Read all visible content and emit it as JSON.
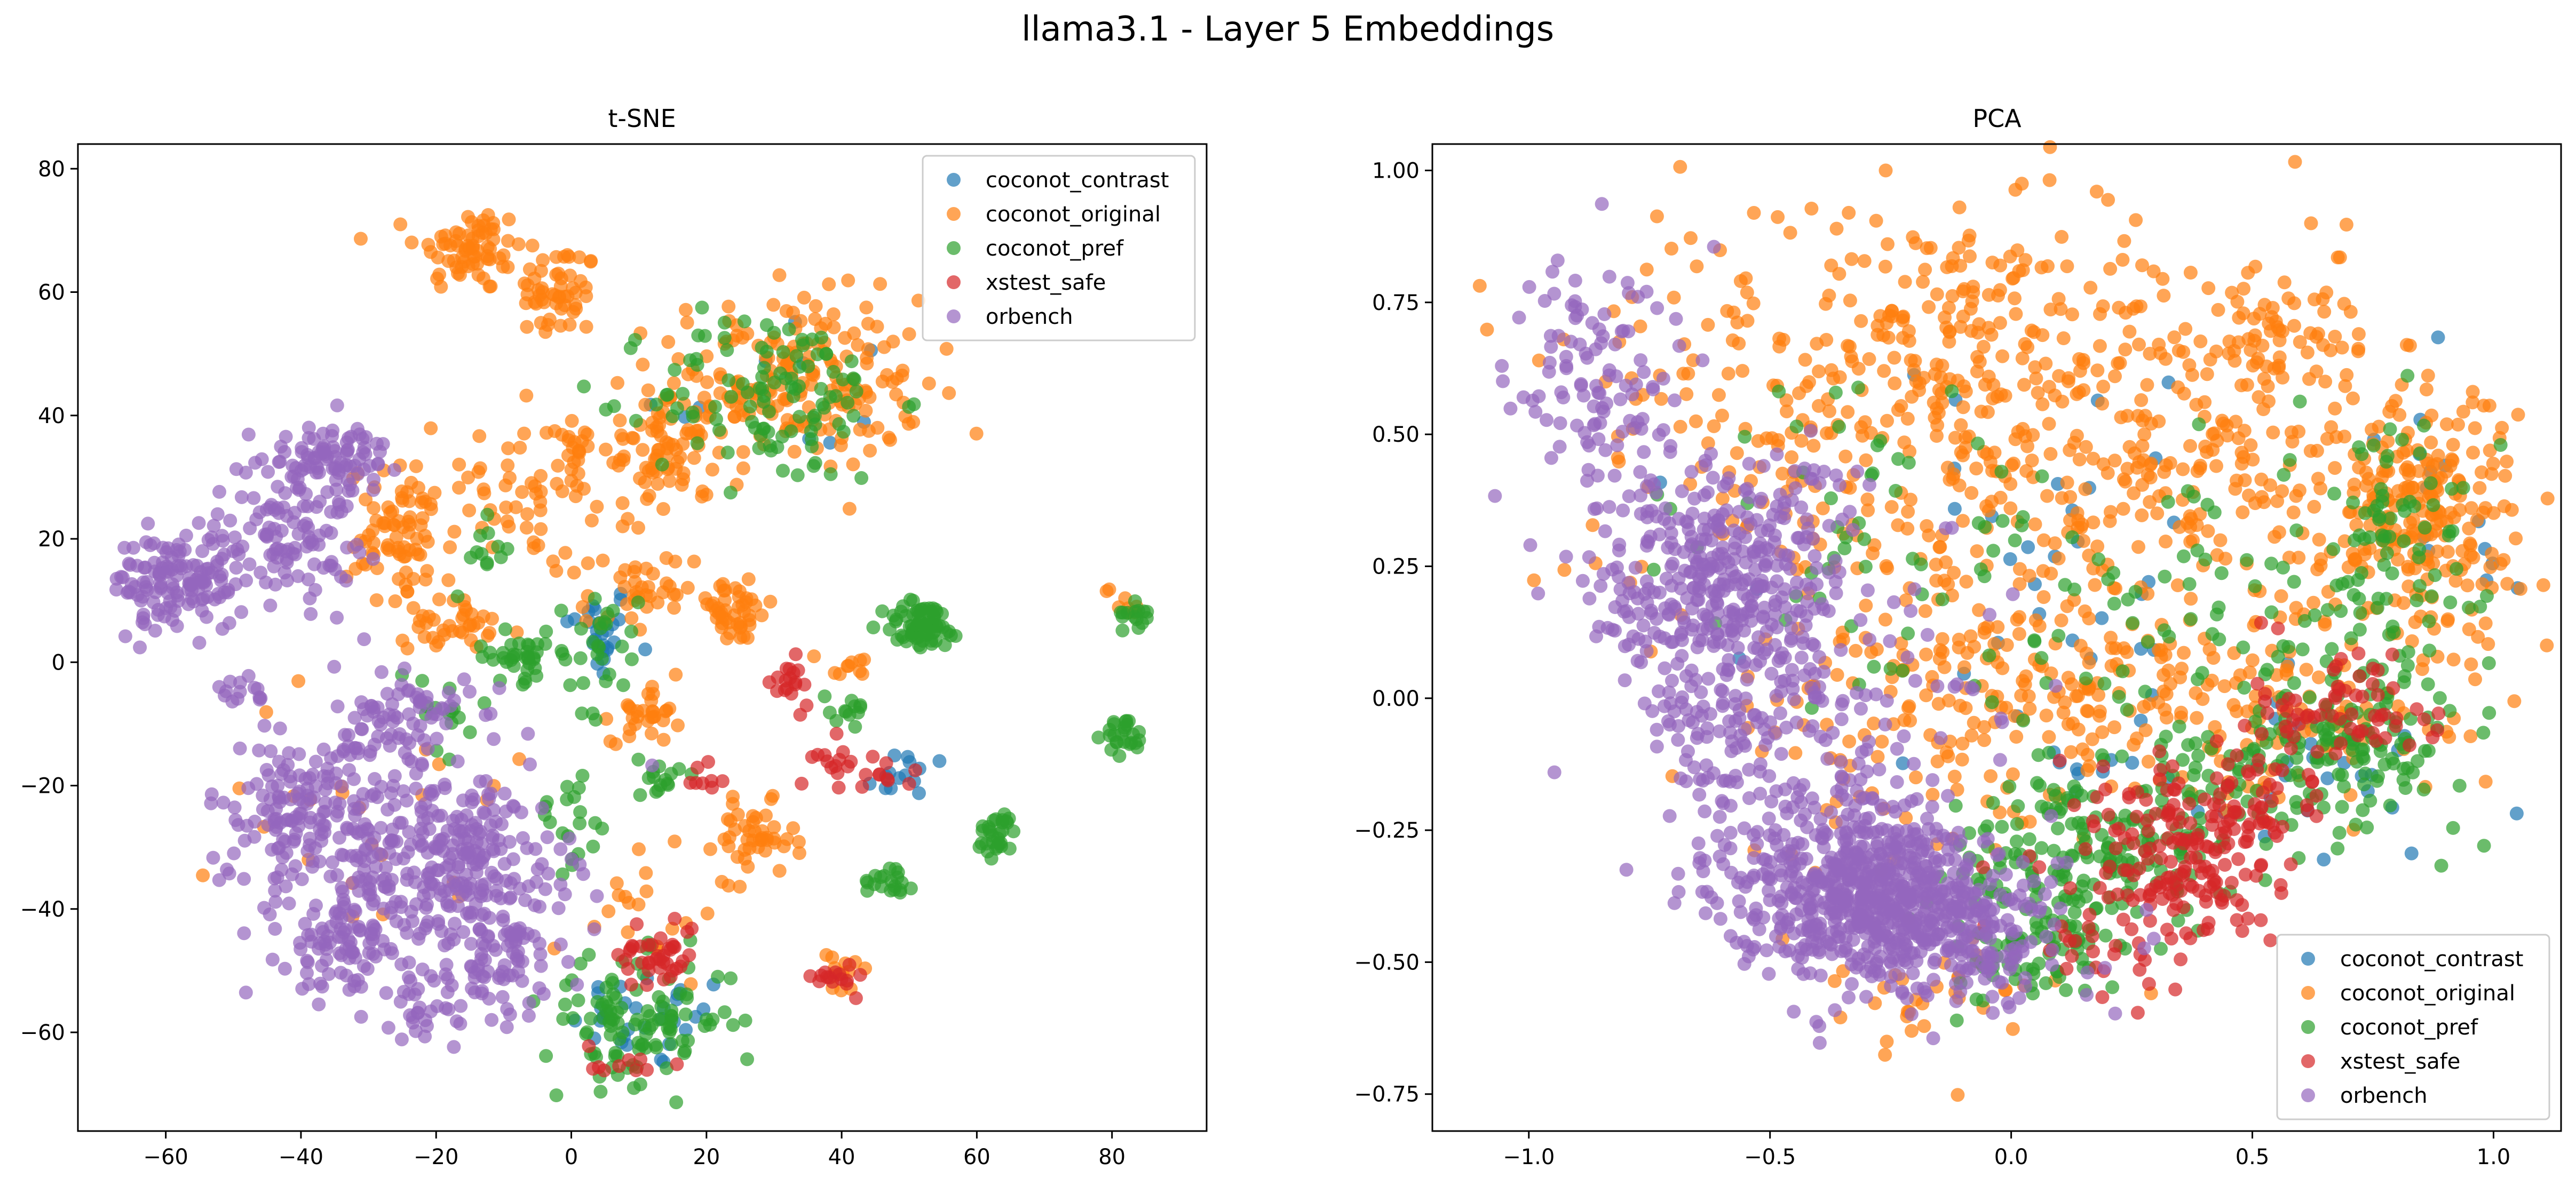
{
  "figure": {
    "title": "llama3.1 - Layer 5 Embeddings"
  },
  "chart_data": [
    {
      "type": "scatter",
      "title": "t-SNE",
      "xlabel": "",
      "ylabel": "",
      "xlim": [
        -73,
        94
      ],
      "ylim": [
        -76,
        84
      ],
      "xticks": [
        -60,
        -40,
        -20,
        0,
        20,
        40,
        60,
        80
      ],
      "xtick_labels": [
        "−60",
        "−40",
        "−20",
        "0",
        "20",
        "40",
        "60",
        "80"
      ],
      "yticks": [
        -60,
        -40,
        -20,
        0,
        20,
        40,
        60,
        80
      ],
      "ytick_labels": [
        "−60",
        "−40",
        "−20",
        "0",
        "20",
        "40",
        "60",
        "80"
      ],
      "grid": false,
      "legend": "top-right",
      "series": [
        {
          "name": "coconot_contrast",
          "color": "#1f77b4",
          "clusters": [
            {
              "cx": 4,
              "cy": 5,
              "sx": 2.5,
              "sy": 4,
              "n": 25
            },
            {
              "cx": 50,
              "cy": -18,
              "sx": 4,
              "sy": 2,
              "n": 14
            },
            {
              "cx": 12,
              "cy": -58,
              "sx": 6,
              "sy": 4,
              "n": 30
            },
            {
              "cx": 30,
              "cy": 45,
              "sx": 10,
              "sy": 8,
              "n": 10
            }
          ]
        },
        {
          "name": "coconot_original",
          "color": "#ff7f0e",
          "clusters": [
            {
              "cx": -15,
              "cy": 67,
              "sx": 4,
              "sy": 3.5,
              "n": 70
            },
            {
              "cx": -2,
              "cy": 60,
              "sx": 3,
              "sy": 4,
              "n": 55
            },
            {
              "cx": 32,
              "cy": 45,
              "sx": 10,
              "sy": 7,
              "n": 210
            },
            {
              "cx": 14,
              "cy": 34,
              "sx": 3,
              "sy": 3,
              "n": 55
            },
            {
              "cx": -25,
              "cy": 20,
              "sx": 4,
              "sy": 6,
              "n": 80
            },
            {
              "cx": -18,
              "cy": 6,
              "sx": 3,
              "sy": 2,
              "n": 35
            },
            {
              "cx": -4,
              "cy": 28,
              "sx": 8,
              "sy": 6,
              "n": 70
            },
            {
              "cx": 10,
              "cy": 10,
              "sx": 4,
              "sy": 4,
              "n": 40
            },
            {
              "cx": 24,
              "cy": 8,
              "sx": 3,
              "sy": 2.5,
              "n": 45
            },
            {
              "cx": 11,
              "cy": -8,
              "sx": 2.5,
              "sy": 2.5,
              "n": 30
            },
            {
              "cx": 27,
              "cy": -29,
              "sx": 3,
              "sy": 3,
              "n": 45
            },
            {
              "cx": 40,
              "cy": -51,
              "sx": 2,
              "sy": 2,
              "n": 12
            },
            {
              "cx": 41,
              "cy": -1,
              "sx": 2,
              "sy": 2,
              "n": 10
            },
            {
              "cx": 0,
              "cy": 36,
              "sx": 2,
              "sy": 3,
              "n": 15
            },
            {
              "cx": 82,
              "cy": 10,
              "sx": 1.5,
              "sy": 1.5,
              "n": 8
            },
            {
              "cx": 10,
              "cy": -40,
              "sx": 6,
              "sy": 6,
              "n": 20
            },
            {
              "cx": -30,
              "cy": -20,
              "sx": 10,
              "sy": 15,
              "n": 25
            }
          ]
        },
        {
          "name": "coconot_pref",
          "color": "#2ca02c",
          "clusters": [
            {
              "cx": 30,
              "cy": 43,
              "sx": 9,
              "sy": 7,
              "n": 110
            },
            {
              "cx": 52,
              "cy": 6,
              "sx": 3,
              "sy": 2,
              "n": 70
            },
            {
              "cx": 82,
              "cy": -12,
              "sx": 1.5,
              "sy": 1.5,
              "n": 25
            },
            {
              "cx": 63,
              "cy": -28,
              "sx": 1.5,
              "sy": 2,
              "n": 30
            },
            {
              "cx": 47,
              "cy": -35,
              "sx": 2,
              "sy": 1.5,
              "n": 20
            },
            {
              "cx": 84,
              "cy": 8,
              "sx": 1.2,
              "sy": 1.2,
              "n": 15
            },
            {
              "cx": -8,
              "cy": 1,
              "sx": 3,
              "sy": 2,
              "n": 35
            },
            {
              "cx": 4,
              "cy": 2,
              "sx": 3,
              "sy": 5,
              "n": 30
            },
            {
              "cx": 13,
              "cy": -19,
              "sx": 1.5,
              "sy": 2,
              "n": 15
            },
            {
              "cx": 41,
              "cy": -7,
              "sx": 1.5,
              "sy": 1.5,
              "n": 12
            },
            {
              "cx": -12,
              "cy": 17,
              "sx": 1.5,
              "sy": 3,
              "n": 12
            },
            {
              "cx": 10,
              "cy": -58,
              "sx": 7,
              "sy": 5,
              "n": 110
            },
            {
              "cx": 0,
              "cy": -25,
              "sx": 3,
              "sy": 4,
              "n": 20
            },
            {
              "cx": -20,
              "cy": -10,
              "sx": 4,
              "sy": 5,
              "n": 15
            }
          ]
        },
        {
          "name": "xstest_safe",
          "color": "#d62728",
          "clusters": [
            {
              "cx": 13,
              "cy": -47,
              "sx": 3,
              "sy": 3,
              "n": 40
            },
            {
              "cx": 39,
              "cy": -51,
              "sx": 1.5,
              "sy": 1.2,
              "n": 15
            },
            {
              "cx": 32,
              "cy": -4,
              "sx": 2,
              "sy": 2,
              "n": 18
            },
            {
              "cx": 40,
              "cy": -16,
              "sx": 2,
              "sy": 2,
              "n": 16
            },
            {
              "cx": 20,
              "cy": -18,
              "sx": 1.5,
              "sy": 1.5,
              "n": 8
            },
            {
              "cx": 47,
              "cy": -18,
              "sx": 2,
              "sy": 1.5,
              "n": 8
            },
            {
              "cx": 7,
              "cy": -65,
              "sx": 3,
              "sy": 2,
              "n": 10
            }
          ]
        },
        {
          "name": "orbench",
          "color": "#9467bd",
          "clusters": [
            {
              "cx": -58,
              "cy": 13,
              "sx": 5,
              "sy": 4,
              "n": 140
            },
            {
              "cx": -42,
              "cy": 22,
              "sx": 5,
              "sy": 6,
              "n": 110
            },
            {
              "cx": -35,
              "cy": 33,
              "sx": 4,
              "sy": 3,
              "n": 80
            },
            {
              "cx": -48,
              "cy": -5,
              "sx": 2,
              "sy": 2,
              "n": 15
            },
            {
              "cx": -25,
              "cy": -10,
              "sx": 5,
              "sy": 5,
              "n": 90
            },
            {
              "cx": -40,
              "cy": -25,
              "sx": 7,
              "sy": 6,
              "n": 160
            },
            {
              "cx": -17,
              "cy": -32,
              "sx": 8,
              "sy": 7,
              "n": 260
            },
            {
              "cx": -33,
              "cy": -45,
              "sx": 5,
              "sy": 5,
              "n": 110
            },
            {
              "cx": -10,
              "cy": -47,
              "sx": 6,
              "sy": 5,
              "n": 70
            },
            {
              "cx": -20,
              "cy": -55,
              "sx": 5,
              "sy": 3,
              "n": 40
            }
          ]
        }
      ]
    },
    {
      "type": "scatter",
      "title": "PCA",
      "xlabel": "",
      "ylabel": "",
      "xlim": [
        -1.2,
        1.14
      ],
      "ylim": [
        -0.82,
        1.05
      ],
      "xticks": [
        -1.0,
        -0.5,
        0.0,
        0.5,
        1.0
      ],
      "xtick_labels": [
        "−1.0",
        "−0.5",
        "0.0",
        "0.5",
        "1.0"
      ],
      "yticks": [
        -0.75,
        -0.5,
        -0.25,
        0.0,
        0.25,
        0.5,
        0.75,
        1.0
      ],
      "ytick_labels": [
        "−0.75",
        "−0.50",
        "−0.25",
        "0.00",
        "0.25",
        "0.50",
        "0.75",
        "1.00"
      ],
      "grid": false,
      "legend": "bottom-right",
      "series": [
        {
          "name": "coconot_contrast",
          "color": "#1f77b4",
          "clusters": [
            {
              "cx": 0.1,
              "cy": 0.25,
              "sx": 0.3,
              "sy": 0.2,
              "n": 30
            },
            {
              "cx": 0.6,
              "cy": -0.15,
              "sx": 0.2,
              "sy": 0.12,
              "n": 25
            },
            {
              "cx": 0.85,
              "cy": 0.3,
              "sx": 0.12,
              "sy": 0.15,
              "n": 15
            },
            {
              "cx": 0.2,
              "cy": -0.05,
              "sx": 0.2,
              "sy": 0.1,
              "n": 15
            }
          ]
        },
        {
          "name": "coconot_original",
          "color": "#ff7f0e",
          "clusters": [
            {
              "cx": -0.05,
              "cy": 0.45,
              "sx": 0.35,
              "sy": 0.2,
              "n": 420
            },
            {
              "cx": -0.2,
              "cy": 0.72,
              "sx": 0.25,
              "sy": 0.1,
              "n": 90
            },
            {
              "cx": 0.4,
              "cy": 0.6,
              "sx": 0.25,
              "sy": 0.12,
              "n": 90
            },
            {
              "cx": 0.85,
              "cy": 0.35,
              "sx": 0.1,
              "sy": 0.12,
              "n": 230
            },
            {
              "cx": 0.2,
              "cy": 0.0,
              "sx": 0.25,
              "sy": 0.1,
              "n": 170
            },
            {
              "cx": -0.2,
              "cy": -0.1,
              "sx": 0.2,
              "sy": 0.12,
              "n": 70
            },
            {
              "cx": 0.55,
              "cy": 0.35,
              "sx": 0.15,
              "sy": 0.15,
              "n": 70
            },
            {
              "cx": 0.55,
              "cy": 0.68,
              "sx": 0.07,
              "sy": 0.05,
              "n": 40
            },
            {
              "cx": 0.6,
              "cy": -0.05,
              "sx": 0.15,
              "sy": 0.08,
              "n": 50
            },
            {
              "cx": -0.2,
              "cy": -0.58,
              "sx": 0.15,
              "sy": 0.06,
              "n": 35
            },
            {
              "cx": -0.6,
              "cy": 0.6,
              "sx": 0.15,
              "sy": 0.15,
              "n": 40
            }
          ]
        },
        {
          "name": "coconot_pref",
          "color": "#2ca02c",
          "clusters": [
            {
              "cx": 0.1,
              "cy": -0.35,
              "sx": 0.12,
              "sy": 0.1,
              "n": 140
            },
            {
              "cx": 0.3,
              "cy": -0.22,
              "sx": 0.12,
              "sy": 0.08,
              "n": 90
            },
            {
              "cx": 0.7,
              "cy": -0.08,
              "sx": 0.12,
              "sy": 0.08,
              "n": 140
            },
            {
              "cx": 0.8,
              "cy": 0.3,
              "sx": 0.1,
              "sy": 0.12,
              "n": 80
            },
            {
              "cx": 0.05,
              "cy": 0.2,
              "sx": 0.3,
              "sy": 0.15,
              "n": 80
            },
            {
              "cx": 0.45,
              "cy": 0.1,
              "sx": 0.15,
              "sy": 0.2,
              "n": 40
            },
            {
              "cx": -0.4,
              "cy": 0.45,
              "sx": 0.2,
              "sy": 0.15,
              "n": 20
            },
            {
              "cx": 0.05,
              "cy": -0.5,
              "sx": 0.08,
              "sy": 0.06,
              "n": 40
            }
          ]
        },
        {
          "name": "xstest_safe",
          "color": "#d62728",
          "clusters": [
            {
              "cx": 0.35,
              "cy": -0.3,
              "sx": 0.1,
              "sy": 0.09,
              "n": 160
            },
            {
              "cx": 0.7,
              "cy": -0.02,
              "sx": 0.1,
              "sy": 0.07,
              "n": 70
            },
            {
              "cx": 0.2,
              "cy": -0.45,
              "sx": 0.08,
              "sy": 0.06,
              "n": 30
            },
            {
              "cx": 0.5,
              "cy": -0.2,
              "sx": 0.08,
              "sy": 0.06,
              "n": 40
            }
          ]
        },
        {
          "name": "orbench",
          "color": "#9467bd",
          "clusters": [
            {
              "cx": -0.3,
              "cy": -0.37,
              "sx": 0.14,
              "sy": 0.08,
              "n": 650
            },
            {
              "cx": -0.6,
              "cy": 0.22,
              "sx": 0.13,
              "sy": 0.12,
              "n": 380
            },
            {
              "cx": -0.85,
              "cy": 0.6,
              "sx": 0.1,
              "sy": 0.12,
              "n": 110
            },
            {
              "cx": -0.5,
              "cy": -0.1,
              "sx": 0.15,
              "sy": 0.12,
              "n": 160
            },
            {
              "cx": -0.1,
              "cy": -0.45,
              "sx": 0.12,
              "sy": 0.07,
              "n": 140
            },
            {
              "cx": -0.3,
              "cy": 0.05,
              "sx": 0.15,
              "sy": 0.15,
              "n": 50
            }
          ]
        }
      ]
    }
  ]
}
